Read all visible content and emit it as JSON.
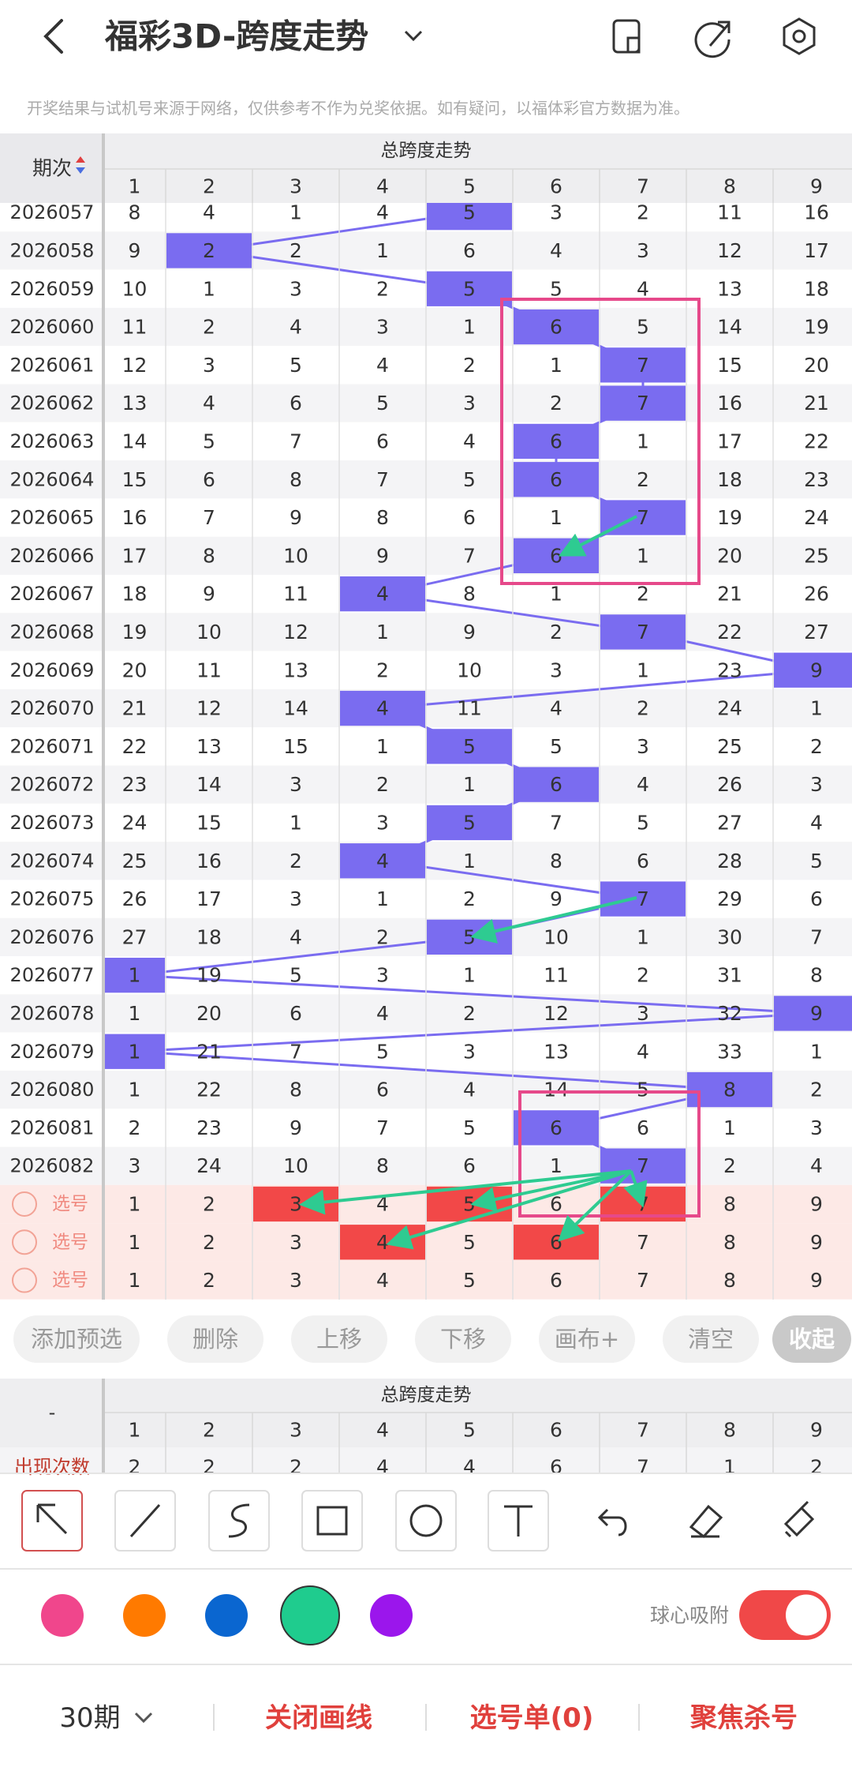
{
  "header": {
    "title": "福彩3D-跨度走势",
    "notice": "开奖结果与试机号来源于网络，仅供参考不作为兑奖依据。如有疑问，以福体彩官方数据为准。"
  },
  "table": {
    "period_header": "期次",
    "group_header": "总跨度走势",
    "columns": [
      1,
      2,
      3,
      4,
      5,
      6,
      7,
      8,
      9
    ],
    "rows": [
      {
        "period": "2026057",
        "values": [
          8,
          4,
          1,
          4,
          5,
          3,
          2,
          11,
          16
        ]
      },
      {
        "period": "2026058",
        "values": [
          9,
          2,
          2,
          1,
          6,
          4,
          3,
          12,
          17
        ]
      },
      {
        "period": "2026059",
        "values": [
          10,
          1,
          3,
          2,
          5,
          5,
          4,
          13,
          18
        ]
      },
      {
        "period": "2026060",
        "values": [
          11,
          2,
          4,
          3,
          1,
          6,
          5,
          14,
          19
        ]
      },
      {
        "period": "2026061",
        "values": [
          12,
          3,
          5,
          4,
          2,
          1,
          7,
          15,
          20
        ]
      },
      {
        "period": "2026062",
        "values": [
          13,
          4,
          6,
          5,
          3,
          2,
          7,
          16,
          21
        ]
      },
      {
        "period": "2026063",
        "values": [
          14,
          5,
          7,
          6,
          4,
          6,
          1,
          17,
          22
        ]
      },
      {
        "period": "2026064",
        "values": [
          15,
          6,
          8,
          7,
          5,
          6,
          2,
          18,
          23
        ]
      },
      {
        "period": "2026065",
        "values": [
          16,
          7,
          9,
          8,
          6,
          1,
          7,
          19,
          24
        ]
      },
      {
        "period": "2026066",
        "values": [
          17,
          8,
          10,
          9,
          7,
          6,
          1,
          20,
          25
        ]
      },
      {
        "period": "2026067",
        "values": [
          18,
          9,
          11,
          4,
          8,
          1,
          2,
          21,
          26
        ]
      },
      {
        "period": "2026068",
        "values": [
          19,
          10,
          12,
          1,
          9,
          2,
          7,
          22,
          27
        ]
      },
      {
        "period": "2026069",
        "values": [
          20,
          11,
          13,
          2,
          10,
          3,
          1,
          23,
          9
        ]
      },
      {
        "period": "2026070",
        "values": [
          21,
          12,
          14,
          4,
          11,
          4,
          2,
          24,
          1
        ]
      },
      {
        "period": "2026071",
        "values": [
          22,
          13,
          15,
          1,
          5,
          5,
          3,
          25,
          2
        ]
      },
      {
        "period": "2026072",
        "values": [
          23,
          14,
          3,
          2,
          1,
          6,
          4,
          26,
          3
        ]
      },
      {
        "period": "2026073",
        "values": [
          24,
          15,
          1,
          3,
          5,
          7,
          5,
          27,
          4
        ]
      },
      {
        "period": "2026074",
        "values": [
          25,
          16,
          2,
          4,
          1,
          8,
          6,
          28,
          5
        ]
      },
      {
        "period": "2026075",
        "values": [
          26,
          17,
          3,
          1,
          2,
          9,
          7,
          29,
          6
        ]
      },
      {
        "period": "2026076",
        "values": [
          27,
          18,
          4,
          2,
          5,
          10,
          1,
          30,
          7
        ]
      },
      {
        "period": "2026077",
        "values": [
          1,
          19,
          5,
          3,
          1,
          11,
          2,
          31,
          8
        ]
      },
      {
        "period": "2026078",
        "values": [
          1,
          20,
          6,
          4,
          2,
          12,
          3,
          32,
          9
        ]
      },
      {
        "period": "2026079",
        "values": [
          1,
          21,
          7,
          5,
          3,
          13,
          4,
          33,
          1
        ]
      },
      {
        "period": "2026080",
        "values": [
          1,
          22,
          8,
          6,
          4,
          14,
          5,
          8,
          2
        ]
      },
      {
        "period": "2026081",
        "values": [
          2,
          23,
          9,
          7,
          5,
          6,
          6,
          1,
          3
        ]
      },
      {
        "period": "2026082",
        "values": [
          3,
          24,
          10,
          8,
          6,
          1,
          7,
          2,
          4
        ]
      }
    ],
    "pick_rows": [
      {
        "label": "选号",
        "values": [
          1,
          2,
          3,
          4,
          5,
          6,
          7,
          8,
          9
        ],
        "selected": [
          3,
          5,
          7
        ]
      },
      {
        "label": "选号",
        "values": [
          1,
          2,
          3,
          4,
          5,
          6,
          7,
          8,
          9
        ],
        "selected": [
          4,
          6
        ]
      },
      {
        "label": "选号",
        "values": [
          1,
          2,
          3,
          4,
          5,
          6,
          7,
          8,
          9
        ],
        "selected": []
      }
    ]
  },
  "actions": [
    "添加预选",
    "删除",
    "上移",
    "下移",
    "画布+",
    "清空",
    "收起"
  ],
  "stats": {
    "label_header": "-",
    "group_header": "总跨度走势",
    "columns": [
      1,
      2,
      3,
      4,
      5,
      6,
      7,
      8,
      9
    ],
    "label": "出现次数",
    "values": [
      2,
      2,
      2,
      4,
      4,
      6,
      7,
      1,
      2
    ]
  },
  "toolbar": {
    "colors": [
      "#f0468c",
      "#ff7a00",
      "#0a66d0",
      "#1fcc8e",
      "#9b16ec"
    ],
    "snap_label": "球心吸附"
  },
  "footer": {
    "periods": "30期",
    "close_lines": "关闭画线",
    "pick_list": "选号单(0)",
    "focus": "聚焦杀号"
  }
}
